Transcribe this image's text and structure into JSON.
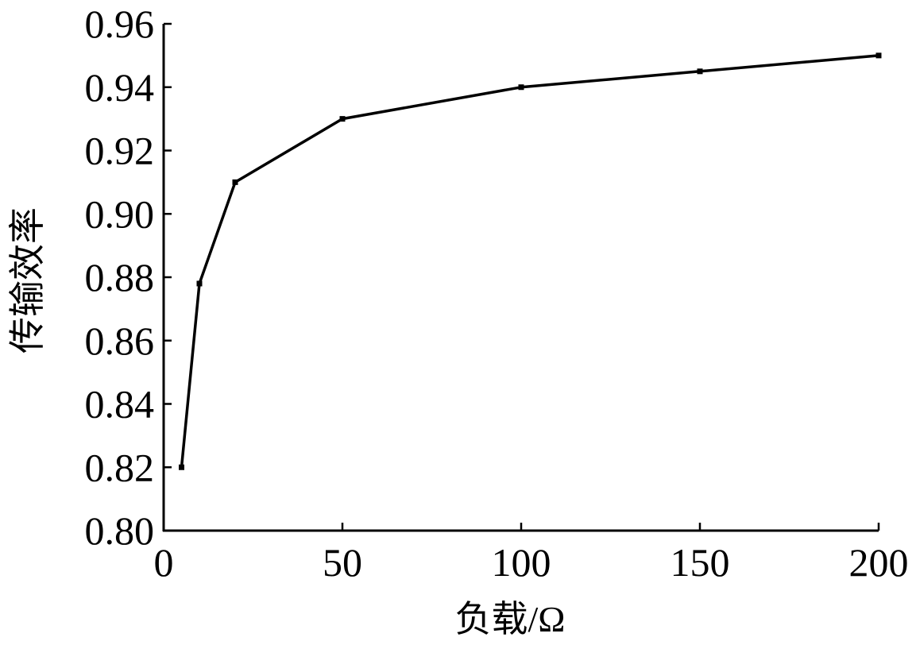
{
  "chart_data": {
    "type": "line",
    "title": "",
    "xlabel": "负载/Ω",
    "ylabel": "传输效率",
    "xlim": [
      0,
      200
    ],
    "ylim": [
      0.8,
      0.96
    ],
    "x_ticks": [
      "0",
      "50",
      "100",
      "150",
      "200"
    ],
    "y_ticks": [
      "0.80",
      "0.82",
      "0.84",
      "0.86",
      "0.88",
      "0.90",
      "0.92",
      "0.94",
      "0.96"
    ],
    "grid": false,
    "legend": "none",
    "series": [
      {
        "x": [
          5,
          10,
          20,
          50,
          100,
          150,
          200
        ],
        "values": [
          0.82,
          0.878,
          0.91,
          0.93,
          0.94,
          0.945,
          0.95
        ],
        "color": "#000000",
        "marker": "square"
      }
    ]
  }
}
